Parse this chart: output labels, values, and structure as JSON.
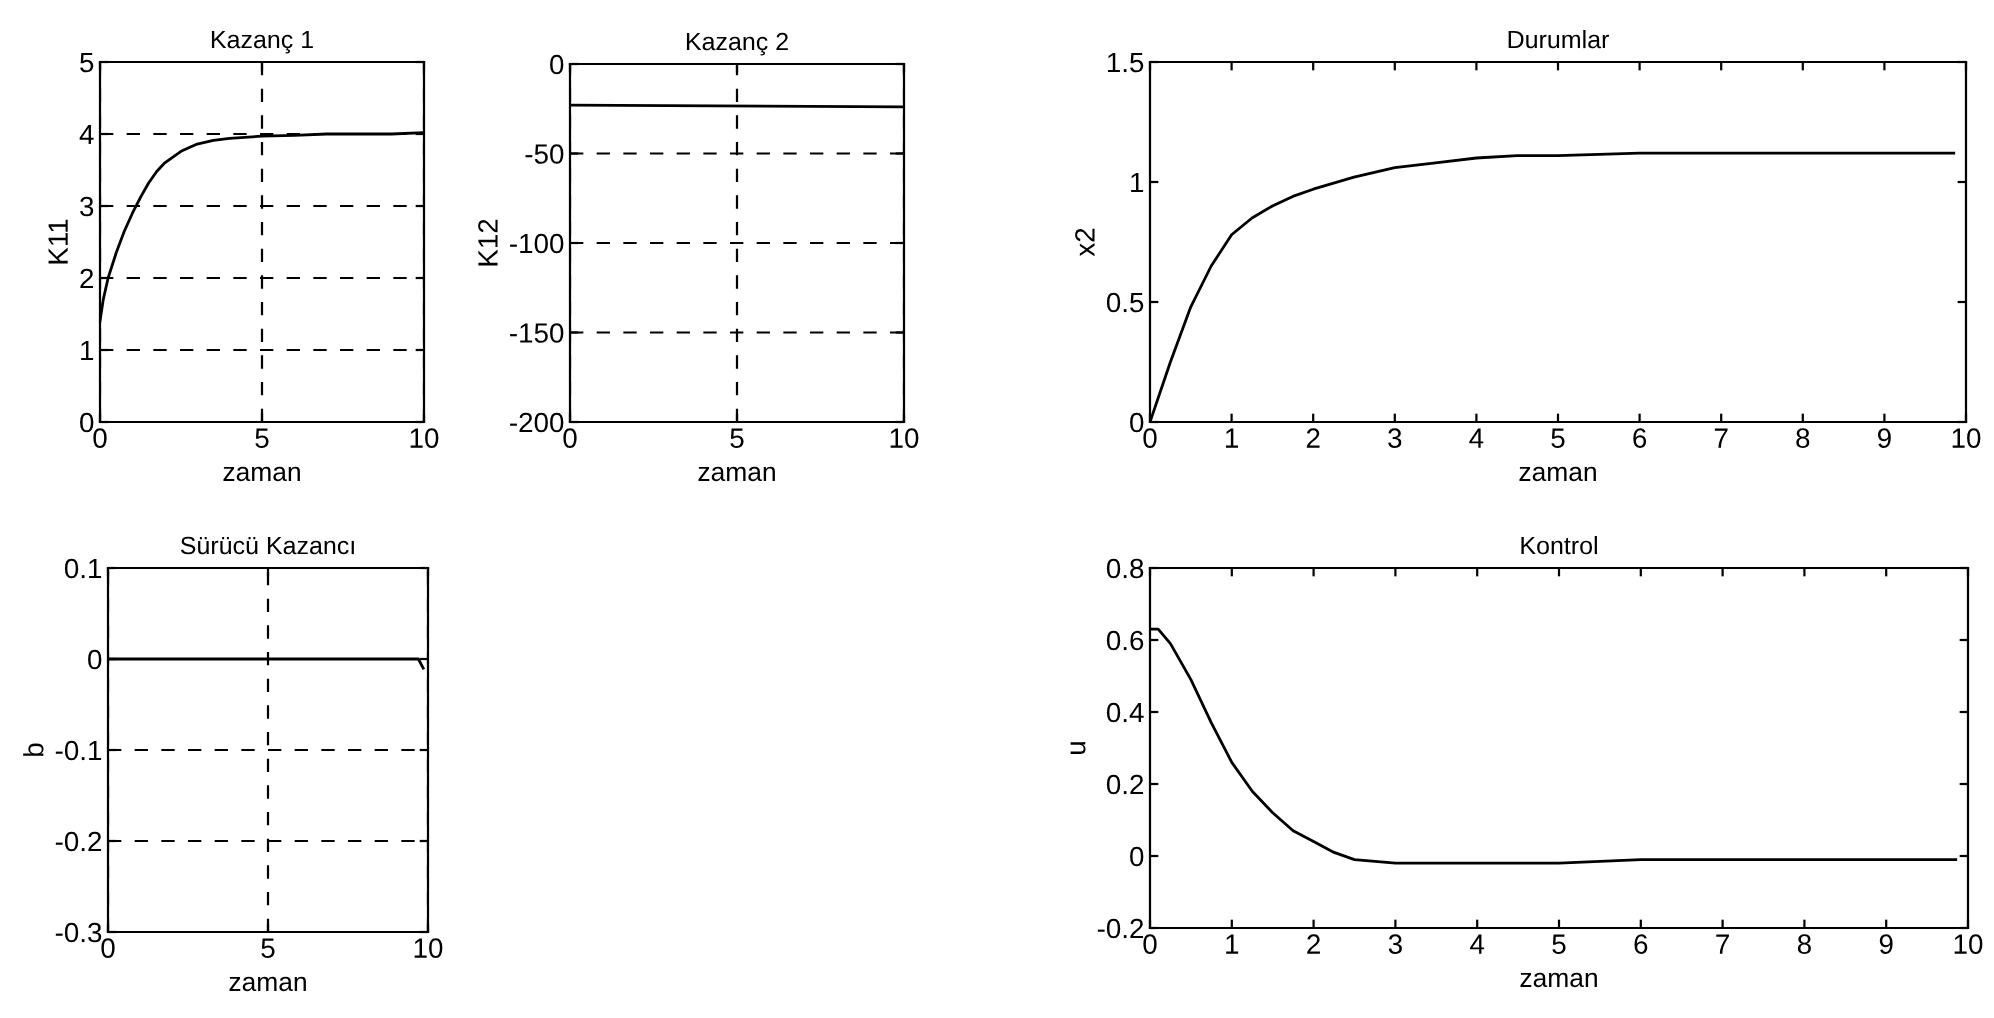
{
  "chart_data": [
    {
      "type": "line",
      "title": "Kazanç 1",
      "xlabel": "zaman",
      "ylabel": "K11",
      "x": [
        0,
        0.1,
        0.25,
        0.5,
        0.75,
        1,
        1.25,
        1.5,
        1.75,
        2,
        2.5,
        3,
        3.5,
        4,
        5,
        6,
        7,
        8,
        9,
        10
      ],
      "series": [
        {
          "color": "#000000",
          "values": [
            1.4,
            1.7,
            2.0,
            2.35,
            2.65,
            2.9,
            3.12,
            3.32,
            3.48,
            3.6,
            3.76,
            3.86,
            3.91,
            3.94,
            3.97,
            3.98,
            4.0,
            4.0,
            4.0,
            4.02
          ]
        }
      ],
      "xlim": [
        0,
        10
      ],
      "ylim": [
        0,
        5
      ],
      "xticks": [
        0,
        5,
        10
      ],
      "yticks": [
        0,
        1,
        2,
        3,
        4,
        5
      ],
      "grid": true,
      "line_style": "solid"
    },
    {
      "type": "line",
      "title": "Kazanç 2",
      "xlabel": "zaman",
      "ylabel": "K12",
      "x": [
        0,
        10
      ],
      "series": [
        {
          "color": "#000000",
          "values": [
            -23,
            -24
          ]
        }
      ],
      "xlim": [
        0,
        10
      ],
      "ylim": [
        -200,
        0
      ],
      "xticks": [
        0,
        5,
        10
      ],
      "yticks": [
        -200,
        -150,
        -100,
        -50,
        0
      ],
      "grid": true,
      "line_style": "solid"
    },
    {
      "type": "line",
      "title": "Durumlar",
      "xlabel": "zaman",
      "ylabel": "x2",
      "x": [
        0,
        0.1,
        0.25,
        0.5,
        0.75,
        1,
        1.25,
        1.5,
        1.75,
        2,
        2.5,
        3,
        3.5,
        4,
        4.5,
        5,
        6,
        7,
        8,
        9,
        9.85
      ],
      "series": [
        {
          "color": "#000000",
          "values": [
            0,
            0.1,
            0.25,
            0.48,
            0.65,
            0.78,
            0.85,
            0.9,
            0.94,
            0.97,
            1.02,
            1.06,
            1.08,
            1.1,
            1.11,
            1.11,
            1.12,
            1.12,
            1.12,
            1.12,
            1.12
          ]
        }
      ],
      "xlim": [
        0,
        10
      ],
      "ylim": [
        0,
        1.5
      ],
      "xticks": [
        0,
        1,
        2,
        3,
        4,
        5,
        6,
        7,
        8,
        9,
        10
      ],
      "yticks": [
        0,
        0.5,
        1,
        1.5
      ],
      "line_style": "solid"
    },
    {
      "type": "line",
      "title": "Sürücü Kazancı",
      "xlabel": "zaman",
      "ylabel": "b",
      "x": [
        0,
        5,
        9.7,
        9.85
      ],
      "series": [
        {
          "color": "#000000",
          "values": [
            0,
            0,
            0,
            -0.01
          ]
        }
      ],
      "xlim": [
        0,
        10
      ],
      "ylim": [
        -0.3,
        0.1
      ],
      "xticks": [
        0,
        5,
        10
      ],
      "yticks": [
        -0.3,
        -0.2,
        -0.1,
        0,
        0.1
      ],
      "grid": true,
      "line_style": "solid"
    },
    {
      "type": "line",
      "title": "Kontrol",
      "xlabel": "zaman",
      "ylabel": "u",
      "x": [
        0,
        0.1,
        0.25,
        0.5,
        0.75,
        1,
        1.25,
        1.5,
        1.75,
        2,
        2.25,
        2.5,
        3,
        4,
        5,
        6,
        7,
        8,
        9,
        9.85
      ],
      "series": [
        {
          "color": "#000000",
          "values": [
            0.63,
            0.63,
            0.59,
            0.49,
            0.37,
            0.26,
            0.18,
            0.12,
            0.07,
            0.04,
            0.01,
            -0.01,
            -0.02,
            -0.02,
            -0.02,
            -0.01,
            -0.01,
            -0.01,
            -0.01,
            -0.01
          ]
        }
      ],
      "xlim": [
        0,
        10
      ],
      "ylim": [
        -0.2,
        0.8
      ],
      "xticks": [
        0,
        1,
        2,
        3,
        4,
        5,
        6,
        7,
        8,
        9,
        10
      ],
      "yticks": [
        -0.2,
        0,
        0.2,
        0.4,
        0.6,
        0.8
      ],
      "line_style": "solid"
    }
  ]
}
